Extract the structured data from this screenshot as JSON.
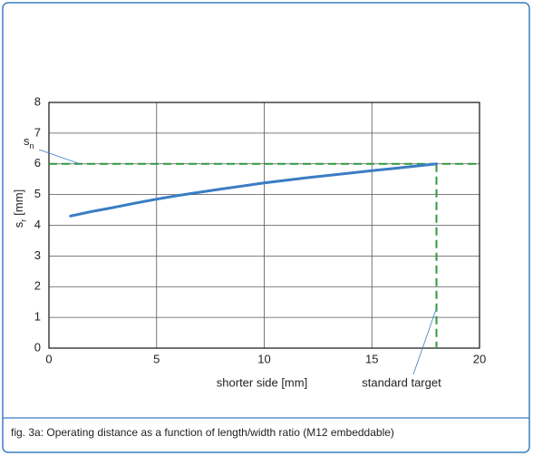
{
  "chart_data": {
    "type": "line",
    "x": [
      1,
      2,
      3,
      4,
      5,
      6,
      8,
      10,
      12,
      14,
      15,
      16,
      18
    ],
    "series": [
      {
        "name": "operating distance",
        "color": "#3a7dc4",
        "values": [
          4.3,
          4.45,
          4.58,
          4.72,
          4.85,
          4.97,
          5.18,
          5.38,
          5.55,
          5.7,
          5.78,
          5.85,
          6.0
        ]
      }
    ],
    "xlim": [
      0,
      20
    ],
    "ylim": [
      0,
      8
    ],
    "xticks": [
      0,
      5,
      10,
      15,
      20
    ],
    "yticks": [
      0,
      1,
      2,
      3,
      4,
      5,
      6,
      7,
      8
    ],
    "grid": true,
    "xlabel": "shorter side [mm]",
    "ylabel": {
      "base": "s",
      "sub": "r",
      "unit": "[mm]"
    },
    "reference_y": 6,
    "reference_x": 18,
    "reference_color": "#2e9a3e",
    "reference_y_label": {
      "base": "s",
      "sub": "n"
    },
    "reference_x_label": "standard target",
    "caption": "fig. 3a: Operating distance as a function of length/width ratio (M12 embeddable)"
  }
}
